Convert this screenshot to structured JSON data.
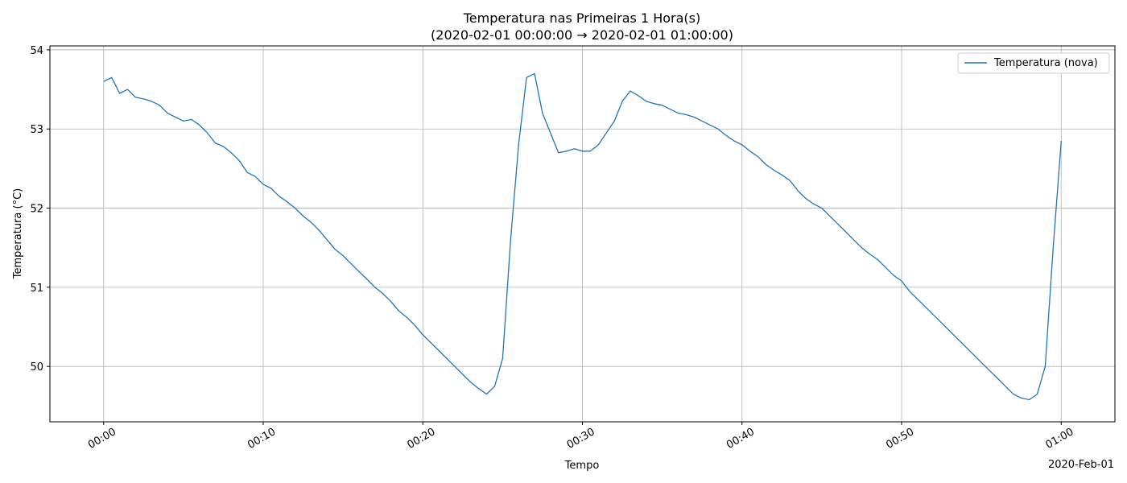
{
  "chart_data": {
    "type": "line",
    "title": "Temperatura nas Primeiras 1 Hora(s)",
    "subtitle": "(2020-02-01 00:00:00 → 2020-02-01 01:00:00)",
    "xlabel": "Tempo",
    "ylabel": "Temperatura (°C)",
    "x_offset_label": "2020-Feb-01",
    "xlim": [
      "2020-02-01 23:56:38",
      "2020-02-01 01:03:22"
    ],
    "ylim": [
      49.3,
      54.05
    ],
    "x_ticks": [
      {
        "value": "2020-02-01 00:00:00",
        "label": "00:00"
      },
      {
        "value": "2020-02-01 00:10:00",
        "label": "00:10"
      },
      {
        "value": "2020-02-01 00:20:00",
        "label": "00:20"
      },
      {
        "value": "2020-02-01 00:30:00",
        "label": "00:30"
      },
      {
        "value": "2020-02-01 00:40:00",
        "label": "00:40"
      },
      {
        "value": "2020-02-01 00:50:00",
        "label": "00:50"
      },
      {
        "value": "2020-02-01 01:00:00",
        "label": "01:00"
      }
    ],
    "y_ticks": [
      50,
      51,
      52,
      53,
      54
    ],
    "grid": true,
    "legend_position": "top-right",
    "colors": {
      "series": "#1f77b4",
      "grid": "#b0b0b0",
      "axis": "#000000"
    },
    "series": [
      {
        "name": "Temperatura (nova)",
        "points": [
          [
            "00:00:00",
            53.6
          ],
          [
            "00:00:30",
            53.65
          ],
          [
            "00:01:00",
            53.45
          ],
          [
            "00:01:30",
            53.5
          ],
          [
            "00:02:00",
            53.4
          ],
          [
            "00:02:30",
            53.38
          ],
          [
            "00:03:00",
            53.35
          ],
          [
            "00:03:30",
            53.3
          ],
          [
            "00:04:00",
            53.2
          ],
          [
            "00:04:30",
            53.15
          ],
          [
            "00:05:00",
            53.1
          ],
          [
            "00:05:30",
            53.12
          ],
          [
            "00:06:00",
            53.05
          ],
          [
            "00:06:30",
            52.95
          ],
          [
            "00:07:00",
            52.82
          ],
          [
            "00:07:30",
            52.78
          ],
          [
            "00:08:00",
            52.7
          ],
          [
            "00:08:30",
            52.6
          ],
          [
            "00:09:00",
            52.45
          ],
          [
            "00:09:30",
            52.4
          ],
          [
            "00:10:00",
            52.3
          ],
          [
            "00:10:30",
            52.25
          ],
          [
            "00:11:00",
            52.15
          ],
          [
            "00:11:30",
            52.08
          ],
          [
            "00:12:00",
            52.0
          ],
          [
            "00:12:30",
            51.9
          ],
          [
            "00:13:00",
            51.82
          ],
          [
            "00:13:30",
            51.72
          ],
          [
            "00:14:00",
            51.6
          ],
          [
            "00:14:30",
            51.48
          ],
          [
            "00:15:00",
            51.4
          ],
          [
            "00:15:30",
            51.3
          ],
          [
            "00:16:00",
            51.2
          ],
          [
            "00:16:30",
            51.1
          ],
          [
            "00:17:00",
            51.0
          ],
          [
            "00:17:30",
            50.92
          ],
          [
            "00:18:00",
            50.82
          ],
          [
            "00:18:30",
            50.7
          ],
          [
            "00:19:00",
            50.62
          ],
          [
            "00:19:30",
            50.52
          ],
          [
            "00:20:00",
            50.4
          ],
          [
            "00:20:30",
            50.3
          ],
          [
            "00:21:00",
            50.2
          ],
          [
            "00:21:30",
            50.1
          ],
          [
            "00:22:00",
            50.0
          ],
          [
            "00:22:30",
            49.9
          ],
          [
            "00:23:00",
            49.8
          ],
          [
            "00:23:30",
            49.72
          ],
          [
            "00:24:00",
            49.65
          ],
          [
            "00:24:30",
            49.75
          ],
          [
            "00:25:00",
            50.1
          ],
          [
            "00:25:30",
            51.6
          ],
          [
            "00:26:00",
            52.8
          ],
          [
            "00:26:30",
            53.65
          ],
          [
            "00:27:00",
            53.7
          ],
          [
            "00:27:30",
            53.2
          ],
          [
            "00:28:00",
            52.95
          ],
          [
            "00:28:30",
            52.7
          ],
          [
            "00:29:00",
            52.72
          ],
          [
            "00:29:30",
            52.75
          ],
          [
            "00:30:00",
            52.72
          ],
          [
            "00:30:30",
            52.72
          ],
          [
            "00:31:00",
            52.8
          ],
          [
            "00:31:30",
            52.95
          ],
          [
            "00:32:00",
            53.1
          ],
          [
            "00:32:30",
            53.35
          ],
          [
            "00:33:00",
            53.48
          ],
          [
            "00:33:30",
            53.42
          ],
          [
            "00:34:00",
            53.35
          ],
          [
            "00:34:30",
            53.32
          ],
          [
            "00:35:00",
            53.3
          ],
          [
            "00:35:30",
            53.25
          ],
          [
            "00:36:00",
            53.2
          ],
          [
            "00:36:30",
            53.18
          ],
          [
            "00:37:00",
            53.15
          ],
          [
            "00:37:30",
            53.1
          ],
          [
            "00:38:00",
            53.05
          ],
          [
            "00:38:30",
            53.0
          ],
          [
            "00:39:00",
            52.92
          ],
          [
            "00:39:30",
            52.85
          ],
          [
            "00:40:00",
            52.8
          ],
          [
            "00:40:30",
            52.72
          ],
          [
            "00:41:00",
            52.65
          ],
          [
            "00:41:30",
            52.55
          ],
          [
            "00:42:00",
            52.48
          ],
          [
            "00:42:30",
            52.42
          ],
          [
            "00:43:00",
            52.35
          ],
          [
            "00:43:30",
            52.22
          ],
          [
            "00:44:00",
            52.12
          ],
          [
            "00:44:30",
            52.05
          ],
          [
            "00:45:00",
            52.0
          ],
          [
            "00:45:30",
            51.9
          ],
          [
            "00:46:00",
            51.8
          ],
          [
            "00:46:30",
            51.7
          ],
          [
            "00:47:00",
            51.6
          ],
          [
            "00:47:30",
            51.5
          ],
          [
            "00:48:00",
            51.42
          ],
          [
            "00:48:30",
            51.35
          ],
          [
            "00:49:00",
            51.25
          ],
          [
            "00:49:30",
            51.15
          ],
          [
            "00:50:00",
            51.08
          ],
          [
            "00:50:30",
            50.95
          ],
          [
            "00:51:00",
            50.85
          ],
          [
            "00:51:30",
            50.75
          ],
          [
            "00:52:00",
            50.65
          ],
          [
            "00:52:30",
            50.55
          ],
          [
            "00:53:00",
            50.45
          ],
          [
            "00:53:30",
            50.35
          ],
          [
            "00:54:00",
            50.25
          ],
          [
            "00:54:30",
            50.15
          ],
          [
            "00:55:00",
            50.05
          ],
          [
            "00:55:30",
            49.95
          ],
          [
            "00:56:00",
            49.85
          ],
          [
            "00:56:30",
            49.75
          ],
          [
            "00:57:00",
            49.65
          ],
          [
            "00:57:30",
            49.6
          ],
          [
            "00:58:00",
            49.58
          ],
          [
            "00:58:30",
            49.65
          ],
          [
            "00:59:00",
            50.0
          ],
          [
            "00:59:30",
            51.5
          ],
          [
            "01:00:00",
            52.85
          ]
        ]
      }
    ]
  }
}
